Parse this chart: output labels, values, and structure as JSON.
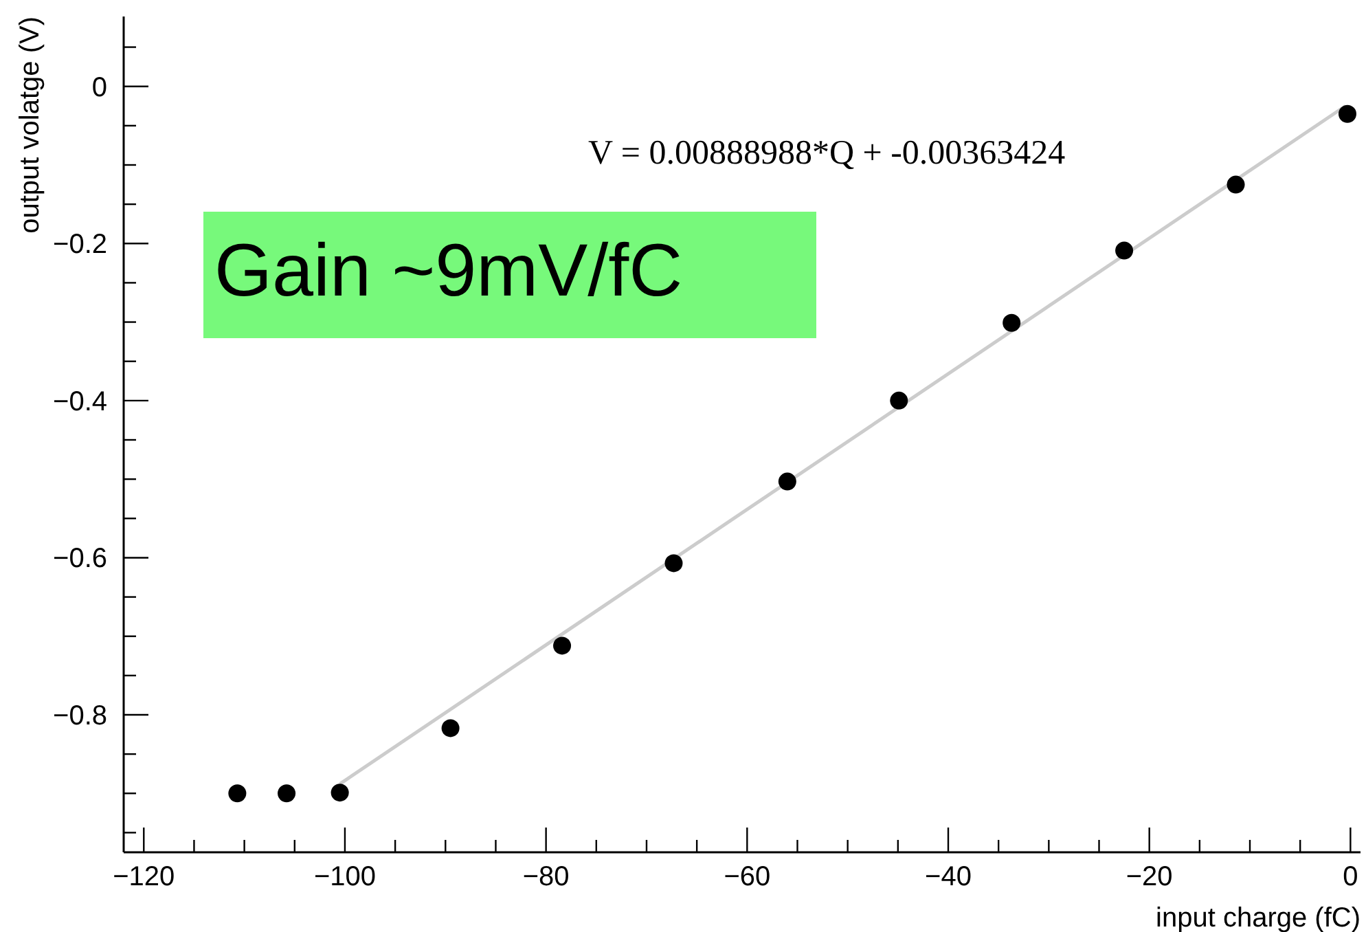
{
  "chart_data": {
    "type": "scatter",
    "xlabel": "input charge (fC)",
    "ylabel": "output volatge (V)",
    "annotations": [
      "V = 0.00888988*Q + -0.00363424",
      "Gain ~9mV/fC"
    ],
    "marker": "circle",
    "grid": false,
    "legend": false,
    "xlim": [
      -122,
      1
    ],
    "ylim": [
      -0.975,
      0.089
    ],
    "xticks": [
      {
        "value": -120,
        "label": "−120"
      },
      {
        "value": -115,
        "label": null
      },
      {
        "value": -110,
        "label": null
      },
      {
        "value": -105,
        "label": null
      },
      {
        "value": -100,
        "label": "−100"
      },
      {
        "value": -95,
        "label": null
      },
      {
        "value": -90,
        "label": null
      },
      {
        "value": -85,
        "label": null
      },
      {
        "value": -80,
        "label": "−80"
      },
      {
        "value": -75,
        "label": null
      },
      {
        "value": -70,
        "label": null
      },
      {
        "value": -65,
        "label": null
      },
      {
        "value": -60,
        "label": "−60"
      },
      {
        "value": -55,
        "label": null
      },
      {
        "value": -50,
        "label": null
      },
      {
        "value": -45,
        "label": null
      },
      {
        "value": -40,
        "label": "−40"
      },
      {
        "value": -35,
        "label": null
      },
      {
        "value": -30,
        "label": null
      },
      {
        "value": -25,
        "label": null
      },
      {
        "value": -20,
        "label": "−20"
      },
      {
        "value": -15,
        "label": null
      },
      {
        "value": -10,
        "label": null
      },
      {
        "value": -5,
        "label": null
      },
      {
        "value": 0,
        "label": "0"
      }
    ],
    "yticks": [
      {
        "value": -0.95,
        "label": null
      },
      {
        "value": -0.9,
        "label": null
      },
      {
        "value": -0.85,
        "label": null
      },
      {
        "value": -0.8,
        "label": "−0.8"
      },
      {
        "value": -0.75,
        "label": null
      },
      {
        "value": -0.7,
        "label": null
      },
      {
        "value": -0.65,
        "label": null
      },
      {
        "value": -0.6,
        "label": "−0.6"
      },
      {
        "value": -0.55,
        "label": null
      },
      {
        "value": -0.5,
        "label": null
      },
      {
        "value": -0.45,
        "label": null
      },
      {
        "value": -0.4,
        "label": "−0.4"
      },
      {
        "value": -0.35,
        "label": null
      },
      {
        "value": -0.3,
        "label": null
      },
      {
        "value": -0.25,
        "label": null
      },
      {
        "value": -0.2,
        "label": "−0.2"
      },
      {
        "value": -0.15,
        "label": null
      },
      {
        "value": -0.1,
        "label": null
      },
      {
        "value": -0.05,
        "label": null
      },
      {
        "value": 0,
        "label": "0"
      },
      {
        "value": 0.05,
        "label": null
      }
    ],
    "series": [
      {
        "color": "#000000",
        "x": [
          -110.7,
          -105.8,
          -100.5,
          -89.5,
          -78.4,
          -67.3,
          -56.0,
          -44.9,
          -33.7,
          -22.5,
          -11.4,
          -0.3
        ],
        "values": [
          -0.9,
          -0.9,
          -0.899,
          -0.817,
          -0.712,
          -0.607,
          -0.503,
          -0.4,
          -0.301,
          -0.209,
          -0.125,
          -0.035
        ]
      },
      {
        "type": "line",
        "marker": "none",
        "color": "#cccccc",
        "x": [
          -100.5,
          -0.5
        ],
        "values": [
          -0.888,
          -0.025
        ]
      }
    ]
  }
}
